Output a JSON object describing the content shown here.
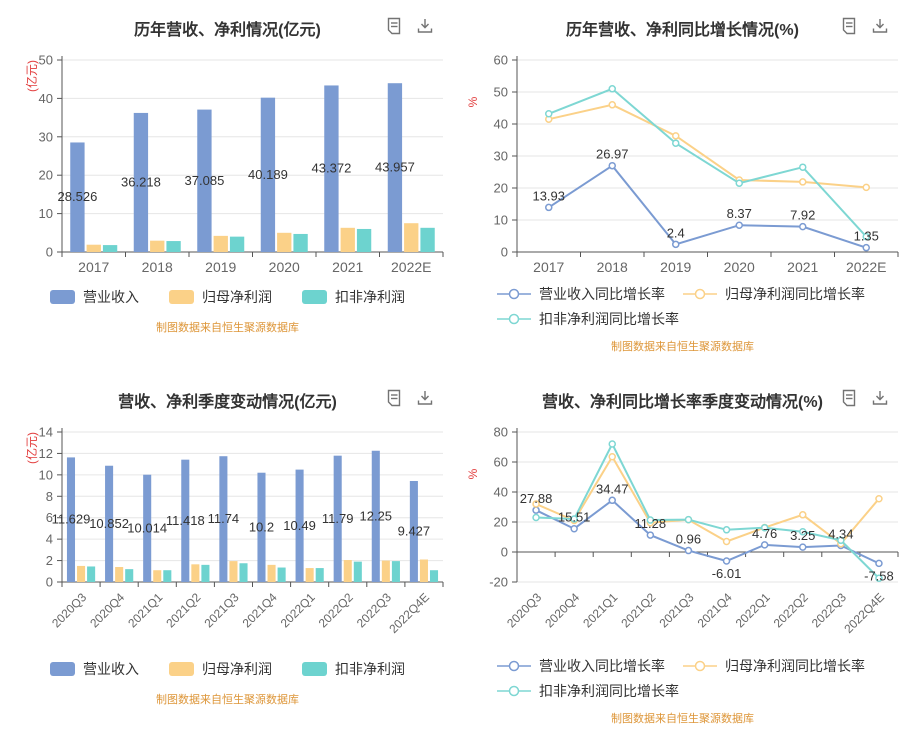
{
  "page": {
    "background": "#ffffff"
  },
  "colors": {
    "revenue_blue": "#7b9bd2",
    "profit_orange": "#fbd188",
    "nongaap_teal": "#6dd3cf",
    "line_teal": "#7ed7d3",
    "axis_name": "#e23c3c",
    "title": "#333333",
    "tick_label": "#666666",
    "value_label": "#333333",
    "axis_line": "#555555",
    "grid_line": "#e6e6e6",
    "footer": "#dd9537",
    "icon": "#737373"
  },
  "toolbox": {
    "icons": [
      "data-view-icon",
      "save-image-icon"
    ]
  },
  "chart_data": [
    {
      "type": "bar",
      "title": "历年营收、净利情况(亿元)",
      "y_name": "(亿元)",
      "ylim": [
        0,
        50
      ],
      "ystep": 10,
      "grid": true,
      "legend_position": "bottom",
      "legend_style": "rect",
      "rotate_x_labels": false,
      "categories": [
        "2017",
        "2018",
        "2019",
        "2020",
        "2021",
        "2022E"
      ],
      "series": [
        {
          "name": "营业收入",
          "color": "#7b9bd2",
          "values": [
            28.526,
            36.218,
            37.085,
            40.189,
            43.372,
            43.957
          ],
          "labels": [
            "28.526",
            "36.218",
            "37.085",
            "40.189",
            "43.372",
            "43.957"
          ]
        },
        {
          "name": "归母净利润",
          "color": "#fbd188",
          "values": [
            1.9,
            2.95,
            4.2,
            5.0,
            6.3,
            7.5
          ]
        },
        {
          "name": "扣非净利润",
          "color": "#6dd3cf",
          "values": [
            1.8,
            2.85,
            4.0,
            4.7,
            6.0,
            6.3
          ]
        }
      ],
      "source_note": "制图数据来自恒生聚源数据库"
    },
    {
      "type": "line",
      "title": "历年营收、净利同比增长情况(%)",
      "y_name": "%",
      "ylim": [
        0,
        60
      ],
      "ystep": 10,
      "grid": true,
      "legend_position": "bottom",
      "legend_style": "line",
      "rotate_x_labels": false,
      "categories": [
        "2017",
        "2018",
        "2019",
        "2020",
        "2021",
        "2022E"
      ],
      "series": [
        {
          "name": "营业收入同比增长率",
          "color": "#7b9bd2",
          "values": [
            13.93,
            26.97,
            2.4,
            8.37,
            7.92,
            1.35
          ],
          "labels": [
            "13.93",
            "26.97",
            "2.4",
            "8.37",
            "7.92",
            "1.35"
          ]
        },
        {
          "name": "归母净利润同比增长率",
          "color": "#fbd188",
          "values": [
            41.5,
            46,
            36.3,
            22.5,
            21.9,
            20.2
          ]
        },
        {
          "name": "扣非净利润同比增长率",
          "color": "#7ed7d3",
          "values": [
            43.2,
            51,
            34,
            21.5,
            26.5,
            4.8
          ]
        }
      ],
      "source_note": "制图数据来自恒生聚源数据库"
    },
    {
      "type": "bar",
      "title": "营收、净利季度变动情况(亿元)",
      "y_name": "(亿元)",
      "ylim": [
        0,
        14
      ],
      "ystep": 2,
      "grid": true,
      "legend_position": "bottom",
      "legend_style": "rect",
      "rotate_x_labels": true,
      "categories": [
        "2020Q3",
        "2020Q4",
        "2021Q1",
        "2021Q2",
        "2021Q3",
        "2021Q4",
        "2022Q1",
        "2022Q2",
        "2022Q3",
        "2022Q4E"
      ],
      "series": [
        {
          "name": "营业收入",
          "color": "#7b9bd2",
          "values": [
            11.629,
            10.852,
            10.014,
            11.418,
            11.74,
            10.2,
            10.49,
            11.79,
            12.25,
            9.427
          ],
          "labels": [
            "11.629",
            "10.852",
            "10.014",
            "11.418",
            "11.74",
            "10.2",
            "10.49",
            "11.79",
            "12.25",
            "9.427"
          ]
        },
        {
          "name": "归母净利润",
          "color": "#fbd188",
          "values": [
            1.5,
            1.4,
            1.1,
            1.65,
            1.95,
            1.6,
            1.3,
            2.05,
            2.0,
            2.1
          ]
        },
        {
          "name": "扣非净利润",
          "color": "#6dd3cf",
          "values": [
            1.45,
            1.2,
            1.1,
            1.6,
            1.75,
            1.35,
            1.3,
            1.9,
            1.95,
            1.1
          ]
        }
      ],
      "source_note": "制图数据来自恒生聚源数据库"
    },
    {
      "type": "line",
      "title": "营收、净利同比增长率季度变动情况(%)",
      "y_name": "%",
      "ylim": [
        -20,
        80
      ],
      "ystep": 20,
      "grid": true,
      "legend_position": "bottom",
      "legend_style": "line",
      "rotate_x_labels": true,
      "categories": [
        "2020Q3",
        "2020Q4",
        "2021Q1",
        "2021Q2",
        "2021Q3",
        "2021Q4",
        "2022Q1",
        "2022Q2",
        "2022Q3",
        "2022Q4E"
      ],
      "series": [
        {
          "name": "营业收入同比增长率",
          "color": "#7b9bd2",
          "values": [
            27.88,
            15.51,
            34.47,
            11.28,
            0.96,
            -6.01,
            4.76,
            3.25,
            4.34,
            -7.58
          ],
          "labels": [
            "27.88",
            "15.51",
            "34.47",
            "11.28",
            "0.96",
            "-6.01",
            "4.76",
            "3.25",
            "4.34",
            "-7.58"
          ]
        },
        {
          "name": "归母净利润同比增长率",
          "color": "#fbd188",
          "values": [
            32,
            21,
            63.5,
            19.5,
            21.5,
            7,
            16.3,
            24.8,
            5.5,
            35.5
          ]
        },
        {
          "name": "扣非净利润同比增长率",
          "color": "#7ed7d3",
          "values": [
            23,
            22,
            72,
            21.3,
            21.6,
            14.8,
            16.2,
            13.5,
            7.8,
            -17.5
          ]
        }
      ],
      "source_note": "制图数据来自恒生聚源数据库"
    }
  ]
}
